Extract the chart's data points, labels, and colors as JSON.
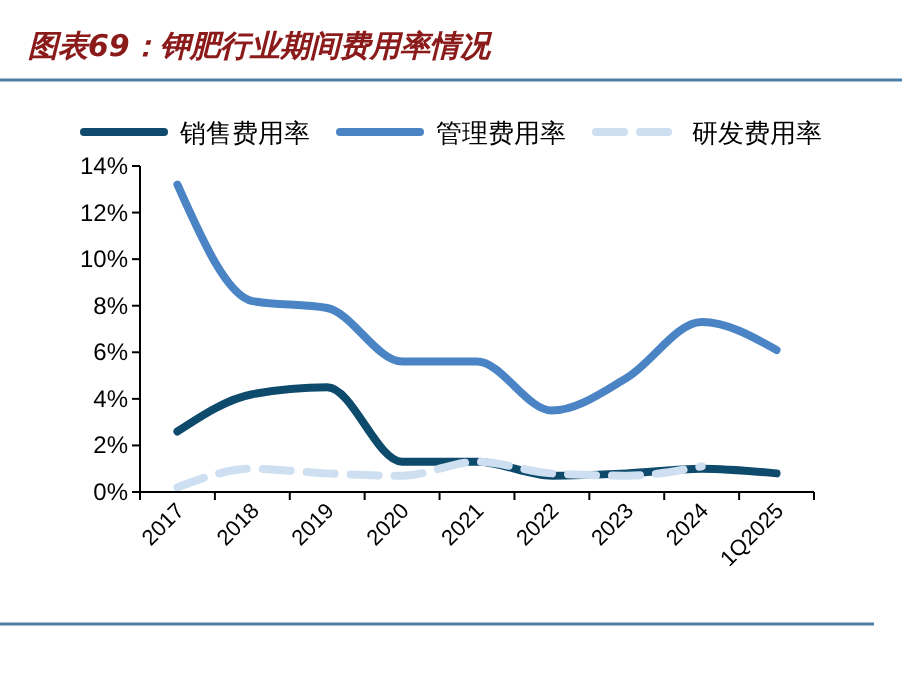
{
  "chart_data": {
    "type": "line",
    "title": "图表69：钾肥行业期间费用率情况",
    "categories": [
      "2017",
      "2018",
      "2019",
      "2020",
      "2021",
      "2022",
      "2023",
      "2024",
      "1Q2025"
    ],
    "series": [
      {
        "name": "销售费用率",
        "color": "#0d4a6b",
        "values": [
          2.6,
          4.2,
          4.5,
          1.3,
          1.3,
          0.7,
          0.8,
          1.0,
          0.8
        ]
      },
      {
        "name": "管理费用率",
        "color": "#4a84c4",
        "values": [
          13.2,
          8.2,
          7.9,
          5.6,
          5.6,
          3.5,
          4.9,
          7.3,
          6.1
        ]
      },
      {
        "name": "研发费用率",
        "color": "#cddff0",
        "values": [
          0.2,
          1.0,
          0.8,
          0.7,
          1.3,
          0.8,
          0.7,
          1.1,
          null
        ],
        "line_style": "dashed"
      }
    ],
    "ylim": [
      0,
      14
    ],
    "yticks": [
      {
        "value": 0,
        "label": "0%"
      },
      {
        "value": 2,
        "label": "2%"
      },
      {
        "value": 4,
        "label": "4%"
      },
      {
        "value": 6,
        "label": "6%"
      },
      {
        "value": 8,
        "label": "8%"
      },
      {
        "value": 10,
        "label": "10%"
      },
      {
        "value": 12,
        "label": "12%"
      },
      {
        "value": 14,
        "label": "14%"
      }
    ],
    "legend": "top",
    "grid": false
  }
}
